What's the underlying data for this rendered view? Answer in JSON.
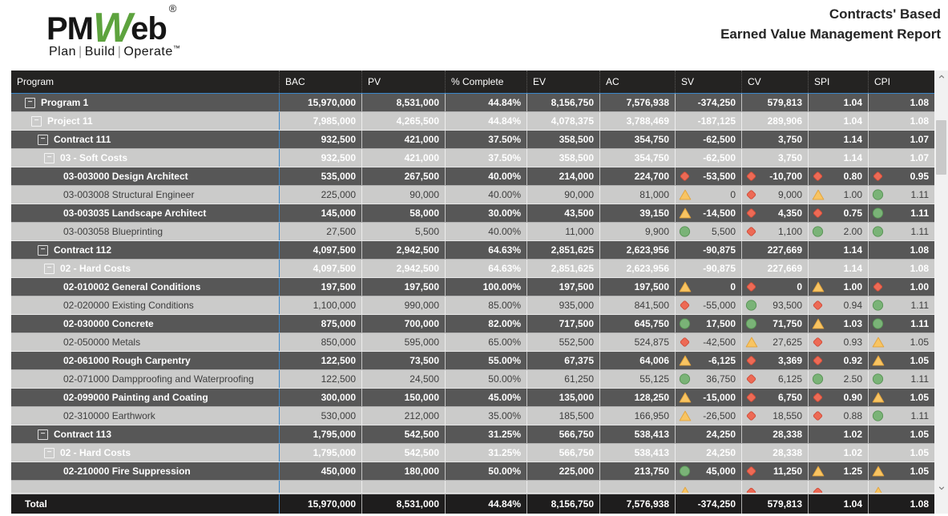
{
  "banner": {
    "logo": {
      "part1": "PM",
      "part2": "W",
      "part3": "eb",
      "registered": "®",
      "tagline_parts": [
        "Plan",
        "Build",
        "Operate"
      ],
      "trademark": "™",
      "green_color": "#5da33e"
    },
    "title_line1": "Contracts' Based",
    "title_line2": "Earned Value Management Report"
  },
  "colors": {
    "header_bg": "#242322",
    "dark_row_bg": "#575757",
    "light_row_bg": "#cbcbca",
    "total_row_bg": "#1e1d1d",
    "frozen_line": "#3a87c9",
    "status_bad_fill": "#ed6a55",
    "status_bad_stroke": "#d04b38",
    "status_warn_fill": "#f8c462",
    "status_warn_stroke": "#e2a33b",
    "status_good_fill": "#7ab377",
    "status_good_stroke": "#579354"
  },
  "table": {
    "columns": [
      "Program",
      "BAC",
      "PV",
      "% Complete",
      "EV",
      "AC",
      "SV",
      "CV",
      "SPI",
      "CPI"
    ],
    "rows": [
      {
        "label": "Program 1",
        "level": "program",
        "expandable": true,
        "collapse_glyph": "−",
        "values": {
          "bac": "15,970,000",
          "pv": "8,531,000",
          "pct": "44.84%",
          "ev": "8,156,750",
          "ac": "7,576,938",
          "sv": "-374,250",
          "cv": "579,813",
          "spi": "1.04",
          "cpi": "1.08"
        },
        "icons": null
      },
      {
        "label": "Project 11",
        "level": "project",
        "expandable": true,
        "collapse_glyph": "−",
        "values": {
          "bac": "7,985,000",
          "pv": "4,265,500",
          "pct": "44.84%",
          "ev": "4,078,375",
          "ac": "3,788,469",
          "sv": "-187,125",
          "cv": "289,906",
          "spi": "1.04",
          "cpi": "1.08"
        },
        "icons": null
      },
      {
        "label": "Contract 111",
        "level": "contract",
        "expandable": true,
        "collapse_glyph": "−",
        "values": {
          "bac": "932,500",
          "pv": "421,000",
          "pct": "37.50%",
          "ev": "358,500",
          "ac": "354,750",
          "sv": "-62,500",
          "cv": "3,750",
          "spi": "1.14",
          "cpi": "1.07"
        },
        "icons": null
      },
      {
        "label": "03 - Soft Costs",
        "level": "group",
        "expandable": true,
        "collapse_glyph": "−",
        "values": {
          "bac": "932,500",
          "pv": "421,000",
          "pct": "37.50%",
          "ev": "358,500",
          "ac": "354,750",
          "sv": "-62,500",
          "cv": "3,750",
          "spi": "1.14",
          "cpi": "1.07"
        },
        "icons": null
      },
      {
        "label": "03-003000 Design Architect",
        "level": "leaf",
        "expandable": false,
        "values": {
          "bac": "535,000",
          "pv": "267,500",
          "pct": "40.00%",
          "ev": "214,000",
          "ac": "224,700",
          "sv": "-53,500",
          "cv": "-10,700",
          "spi": "0.80",
          "cpi": "0.95"
        },
        "icons": {
          "sv": "diamond",
          "cv": "diamond",
          "spi": "diamond",
          "cpi": "diamond"
        }
      },
      {
        "label": "03-003008 Structural Engineer",
        "level": "leaf",
        "expandable": false,
        "values": {
          "bac": "225,000",
          "pv": "90,000",
          "pct": "40.00%",
          "ev": "90,000",
          "ac": "81,000",
          "sv": "0",
          "cv": "9,000",
          "spi": "1.00",
          "cpi": "1.11"
        },
        "icons": {
          "sv": "triangle",
          "cv": "diamond",
          "spi": "triangle",
          "cpi": "circle"
        }
      },
      {
        "label": "03-003035 Landscape Architect",
        "level": "leaf",
        "expandable": false,
        "values": {
          "bac": "145,000",
          "pv": "58,000",
          "pct": "30.00%",
          "ev": "43,500",
          "ac": "39,150",
          "sv": "-14,500",
          "cv": "4,350",
          "spi": "0.75",
          "cpi": "1.11"
        },
        "icons": {
          "sv": "triangle",
          "cv": "diamond",
          "spi": "diamond",
          "cpi": "circle"
        }
      },
      {
        "label": "03-003058 Blueprinting",
        "level": "leaf",
        "expandable": false,
        "values": {
          "bac": "27,500",
          "pv": "5,500",
          "pct": "40.00%",
          "ev": "11,000",
          "ac": "9,900",
          "sv": "5,500",
          "cv": "1,100",
          "spi": "2.00",
          "cpi": "1.11"
        },
        "icons": {
          "sv": "circle",
          "cv": "diamond",
          "spi": "circle",
          "cpi": "circle"
        }
      },
      {
        "label": "Contract 112",
        "level": "contract",
        "expandable": true,
        "collapse_glyph": "−",
        "values": {
          "bac": "4,097,500",
          "pv": "2,942,500",
          "pct": "64.63%",
          "ev": "2,851,625",
          "ac": "2,623,956",
          "sv": "-90,875",
          "cv": "227,669",
          "spi": "1.14",
          "cpi": "1.08"
        },
        "icons": null
      },
      {
        "label": "02 - Hard Costs",
        "level": "group",
        "expandable": true,
        "collapse_glyph": "−",
        "values": {
          "bac": "4,097,500",
          "pv": "2,942,500",
          "pct": "64.63%",
          "ev": "2,851,625",
          "ac": "2,623,956",
          "sv": "-90,875",
          "cv": "227,669",
          "spi": "1.14",
          "cpi": "1.08"
        },
        "icons": null
      },
      {
        "label": "02-010002 General Conditions",
        "level": "leaf",
        "expandable": false,
        "values": {
          "bac": "197,500",
          "pv": "197,500",
          "pct": "100.00%",
          "ev": "197,500",
          "ac": "197,500",
          "sv": "0",
          "cv": "0",
          "spi": "1.00",
          "cpi": "1.00"
        },
        "icons": {
          "sv": "triangle",
          "cv": "diamond",
          "spi": "triangle",
          "cpi": "diamond"
        }
      },
      {
        "label": "02-020000 Existing Conditions",
        "level": "leaf",
        "expandable": false,
        "values": {
          "bac": "1,100,000",
          "pv": "990,000",
          "pct": "85.00%",
          "ev": "935,000",
          "ac": "841,500",
          "sv": "-55,000",
          "cv": "93,500",
          "spi": "0.94",
          "cpi": "1.11"
        },
        "icons": {
          "sv": "diamond",
          "cv": "circle",
          "spi": "diamond",
          "cpi": "circle"
        }
      },
      {
        "label": "02-030000 Concrete",
        "level": "leaf",
        "expandable": false,
        "values": {
          "bac": "875,000",
          "pv": "700,000",
          "pct": "82.00%",
          "ev": "717,500",
          "ac": "645,750",
          "sv": "17,500",
          "cv": "71,750",
          "spi": "1.03",
          "cpi": "1.11"
        },
        "icons": {
          "sv": "circle",
          "cv": "circle",
          "spi": "triangle",
          "cpi": "circle"
        }
      },
      {
        "label": "02-050000 Metals",
        "level": "leaf",
        "expandable": false,
        "values": {
          "bac": "850,000",
          "pv": "595,000",
          "pct": "65.00%",
          "ev": "552,500",
          "ac": "524,875",
          "sv": "-42,500",
          "cv": "27,625",
          "spi": "0.93",
          "cpi": "1.05"
        },
        "icons": {
          "sv": "diamond",
          "cv": "triangle",
          "spi": "diamond",
          "cpi": "triangle"
        }
      },
      {
        "label": "02-061000 Rough Carpentry",
        "level": "leaf",
        "expandable": false,
        "values": {
          "bac": "122,500",
          "pv": "73,500",
          "pct": "55.00%",
          "ev": "67,375",
          "ac": "64,006",
          "sv": "-6,125",
          "cv": "3,369",
          "spi": "0.92",
          "cpi": "1.05"
        },
        "icons": {
          "sv": "triangle",
          "cv": "diamond",
          "spi": "diamond",
          "cpi": "triangle"
        }
      },
      {
        "label": "02-071000 Dampproofing and Waterproofing",
        "level": "leaf",
        "expandable": false,
        "values": {
          "bac": "122,500",
          "pv": "24,500",
          "pct": "50.00%",
          "ev": "61,250",
          "ac": "55,125",
          "sv": "36,750",
          "cv": "6,125",
          "spi": "2.50",
          "cpi": "1.11"
        },
        "icons": {
          "sv": "circle",
          "cv": "diamond",
          "spi": "circle",
          "cpi": "circle"
        }
      },
      {
        "label": "02-099000 Painting and Coating",
        "level": "leaf",
        "expandable": false,
        "values": {
          "bac": "300,000",
          "pv": "150,000",
          "pct": "45.00%",
          "ev": "135,000",
          "ac": "128,250",
          "sv": "-15,000",
          "cv": "6,750",
          "spi": "0.90",
          "cpi": "1.05"
        },
        "icons": {
          "sv": "triangle",
          "cv": "diamond",
          "spi": "diamond",
          "cpi": "triangle"
        }
      },
      {
        "label": "02-310000 Earthwork",
        "level": "leaf",
        "expandable": false,
        "values": {
          "bac": "530,000",
          "pv": "212,000",
          "pct": "35.00%",
          "ev": "185,500",
          "ac": "166,950",
          "sv": "-26,500",
          "cv": "18,550",
          "spi": "0.88",
          "cpi": "1.11"
        },
        "icons": {
          "sv": "triangle",
          "cv": "diamond",
          "spi": "diamond",
          "cpi": "circle"
        }
      },
      {
        "label": "Contract 113",
        "level": "contract",
        "expandable": true,
        "collapse_glyph": "−",
        "values": {
          "bac": "1,795,000",
          "pv": "542,500",
          "pct": "31.25%",
          "ev": "566,750",
          "ac": "538,413",
          "sv": "24,250",
          "cv": "28,338",
          "spi": "1.02",
          "cpi": "1.05"
        },
        "icons": null
      },
      {
        "label": "02 - Hard Costs",
        "level": "group",
        "expandable": true,
        "collapse_glyph": "−",
        "values": {
          "bac": "1,795,000",
          "pv": "542,500",
          "pct": "31.25%",
          "ev": "566,750",
          "ac": "538,413",
          "sv": "24,250",
          "cv": "28,338",
          "spi": "1.02",
          "cpi": "1.05"
        },
        "icons": null
      },
      {
        "label": "02-210000 Fire Suppression",
        "level": "leaf",
        "expandable": false,
        "values": {
          "bac": "450,000",
          "pv": "180,000",
          "pct": "50.00%",
          "ev": "225,000",
          "ac": "213,750",
          "sv": "45,000",
          "cv": "11,250",
          "spi": "1.25",
          "cpi": "1.05"
        },
        "icons": {
          "sv": "circle",
          "cv": "diamond",
          "spi": "triangle",
          "cpi": "triangle"
        }
      }
    ],
    "partial_row": {
      "icons": {
        "sv": "triangle",
        "cv": "diamond",
        "spi": "diamond",
        "cpi": "triangle"
      }
    },
    "total": {
      "label": "Total",
      "values": {
        "bac": "15,970,000",
        "pv": "8,531,000",
        "pct": "44.84%",
        "ev": "8,156,750",
        "ac": "7,576,938",
        "sv": "-374,250",
        "cv": "579,813",
        "spi": "1.04",
        "cpi": "1.08"
      }
    }
  }
}
